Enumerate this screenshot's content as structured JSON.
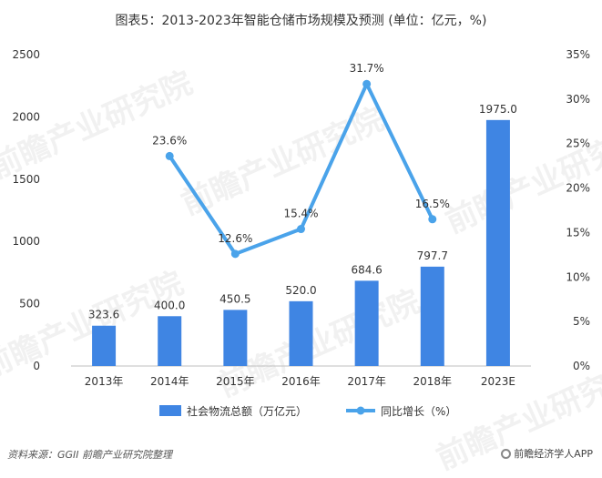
{
  "title": "图表5：2013-2023年智能仓储市场规模及预测 (单位：亿元，%)",
  "source": "资料来源：GGII 前瞻产业研究院整理",
  "brand": "前瞻经济学人APP",
  "watermark": "前瞻产业研究院",
  "colors": {
    "bar": "#3f85e3",
    "line": "#4aa3ea",
    "axis_text": "#333333"
  },
  "chart_data": {
    "type": "bar",
    "categories": [
      "2013年",
      "2014年",
      "2015年",
      "2016年",
      "2017年",
      "2018年",
      "2023E"
    ],
    "series": [
      {
        "name": "社会物流总额（万亿元）",
        "type": "bar",
        "axis": "left",
        "values": [
          323.6,
          400.0,
          450.5,
          520.0,
          684.6,
          797.7,
          1975.0
        ],
        "labels": [
          "323.6",
          "400.0",
          "450.5",
          "520.0",
          "684.6",
          "797.7",
          "1975.0"
        ]
      },
      {
        "name": "同比增长（%）",
        "type": "line",
        "axis": "right",
        "values": [
          null,
          23.6,
          12.6,
          15.4,
          31.7,
          16.5,
          null
        ],
        "labels": [
          "",
          "23.6%",
          "12.6%",
          "15.4%",
          "31.7%",
          "16.5%",
          ""
        ]
      }
    ],
    "y_left": {
      "range": [
        0,
        2500
      ],
      "ticks": [
        "0",
        "500",
        "1000",
        "1500",
        "2000",
        "2500"
      ]
    },
    "y_right": {
      "range": [
        0,
        35
      ],
      "ticks": [
        "0%",
        "5%",
        "10%",
        "15%",
        "20%",
        "25%",
        "30%",
        "35%"
      ]
    },
    "grid": false,
    "legend_position": "bottom"
  }
}
